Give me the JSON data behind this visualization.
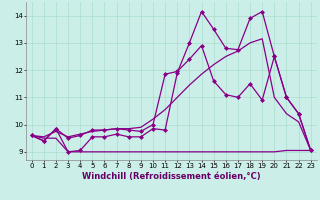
{
  "xlabel": "Windchill (Refroidissement éolien,°C)",
  "background_color": "#cceee8",
  "grid_color": "#aaddcc",
  "line_color": "#880088",
  "xlim": [
    -0.5,
    23.5
  ],
  "ylim": [
    8.7,
    14.5
  ],
  "xticks": [
    0,
    1,
    2,
    3,
    4,
    5,
    6,
    7,
    8,
    9,
    10,
    11,
    12,
    13,
    14,
    15,
    16,
    17,
    18,
    19,
    20,
    21,
    22,
    23
  ],
  "yticks": [
    9,
    10,
    11,
    12,
    13,
    14
  ],
  "series": [
    {
      "x": [
        0,
        1,
        2,
        3,
        4,
        5,
        6,
        7,
        8,
        9,
        10,
        11,
        12,
        13,
        14,
        15,
        16,
        17,
        18,
        19,
        20,
        21,
        22,
        23
      ],
      "y": [
        9.6,
        9.4,
        9.85,
        9.0,
        9.05,
        9.55,
        9.55,
        9.65,
        9.55,
        9.55,
        9.85,
        9.8,
        11.9,
        13.0,
        14.15,
        13.5,
        12.8,
        12.75,
        13.9,
        14.15,
        12.5,
        11.0,
        10.4,
        9.05
      ],
      "marker": "D",
      "markersize": 2.0,
      "linewidth": 0.9
    },
    {
      "x": [
        0,
        1,
        2,
        3,
        4,
        5,
        6,
        7,
        8,
        9,
        10,
        11,
        12,
        13,
        14,
        15,
        16,
        17,
        18,
        19,
        20,
        21,
        22,
        23
      ],
      "y": [
        9.6,
        9.4,
        9.85,
        9.5,
        9.6,
        9.8,
        9.8,
        9.85,
        9.8,
        9.75,
        10.0,
        11.85,
        11.95,
        12.4,
        12.9,
        11.6,
        11.1,
        11.0,
        11.5,
        10.9,
        12.5,
        11.0,
        10.4,
        9.05
      ],
      "marker": "D",
      "markersize": 2.0,
      "linewidth": 0.9
    },
    {
      "x": [
        0,
        1,
        2,
        3,
        4,
        5,
        6,
        7,
        8,
        9,
        10,
        11,
        12,
        13,
        14,
        15,
        16,
        17,
        18,
        19,
        20,
        21,
        22,
        23
      ],
      "y": [
        9.6,
        9.5,
        9.5,
        9.0,
        9.0,
        9.0,
        9.0,
        9.0,
        9.0,
        9.0,
        9.0,
        9.0,
        9.0,
        9.0,
        9.0,
        9.0,
        9.0,
        9.0,
        9.0,
        9.0,
        9.0,
        9.05,
        9.05,
        9.05
      ],
      "marker": null,
      "markersize": 0,
      "linewidth": 0.9
    },
    {
      "x": [
        0,
        1,
        2,
        3,
        4,
        5,
        6,
        7,
        8,
        9,
        10,
        11,
        12,
        13,
        14,
        15,
        16,
        17,
        18,
        19,
        20,
        21,
        22,
        23
      ],
      "y": [
        9.6,
        9.55,
        9.75,
        9.55,
        9.65,
        9.75,
        9.8,
        9.85,
        9.85,
        9.9,
        10.2,
        10.55,
        11.0,
        11.45,
        11.85,
        12.2,
        12.5,
        12.7,
        13.0,
        13.15,
        11.0,
        10.4,
        10.1,
        9.05
      ],
      "marker": null,
      "markersize": 0,
      "linewidth": 0.9
    }
  ],
  "tick_fontsize": 5.0,
  "label_fontsize": 6.0
}
